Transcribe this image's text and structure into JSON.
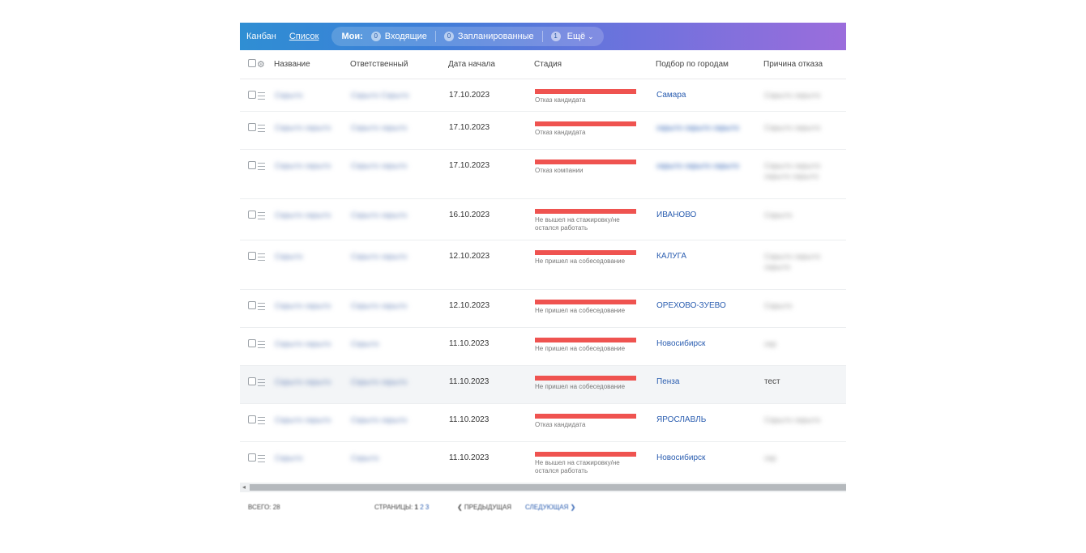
{
  "toolbar": {
    "tab_kanban": "Канбан",
    "tab_list": "Список",
    "my_label": "Мои:",
    "incoming_count": "0",
    "incoming": "Входящие",
    "planned_count": "0",
    "planned": "Запланированные",
    "more_count": "1",
    "more": "Ещё"
  },
  "columns": {
    "name": "Название",
    "responsible": "Ответственный",
    "start_date": "Дата начала",
    "stage": "Стадия",
    "city": "Подбор по городам",
    "reason": "Причина отказа"
  },
  "rows": [
    {
      "name": "Скрыто",
      "responsible": "Скрыто Скрыто",
      "date": "17.10.2023",
      "stage": "Отказ кандидата",
      "city": "Самара",
      "reason": "Скрыто скрыто"
    },
    {
      "name": "Скрыто скрыто",
      "responsible": "Скрыто скрыто",
      "date": "17.10.2023",
      "stage": "Отказ кандидата",
      "city": "скрыто скрыто скрыто",
      "reason": "Скрыто скрыто"
    },
    {
      "name": "Скрыто скрыто",
      "responsible": "Скрыто скрыто",
      "date": "17.10.2023",
      "stage": "Отказ компании",
      "city": "скрыто скрыто скрыто",
      "reason": "Скрыто скрыто скрыто скрыто"
    },
    {
      "name": "Скрыто скрыто",
      "responsible": "Скрыто скрыто",
      "date": "16.10.2023",
      "stage": "Не вышел на стажировку/не остался работать",
      "city": "ИВАНОВО",
      "reason": "Скрыто"
    },
    {
      "name": "Скрыто",
      "responsible": "Скрыто скрыто",
      "date": "12.10.2023",
      "stage": "Не пришел на собеседование",
      "city": "КАЛУГА",
      "reason": "Скрыто скрыто скрыто"
    },
    {
      "name": "Скрыто скрыто",
      "responsible": "Скрыто скрыто",
      "date": "12.10.2023",
      "stage": "Не пришел на собеседование",
      "city": "ОРЕХОВО-ЗУЕВО",
      "reason": "Скрыто"
    },
    {
      "name": "Скрыто скрыто",
      "responsible": "Скрыто",
      "date": "11.10.2023",
      "stage": "Не пришел на собеседование",
      "city": "Новосибирск",
      "reason": "скр"
    },
    {
      "name": "Скрыто скрыто",
      "responsible": "Скрыто скрыто",
      "date": "11.10.2023",
      "stage": "Не пришел на собеседование",
      "city": "Пенза",
      "reason": "тест"
    },
    {
      "name": "Скрыто скрыто",
      "responsible": "Скрыто скрыто",
      "date": "11.10.2023",
      "stage": "Отказ кандидата",
      "city": "ЯРОСЛАВЛЬ",
      "reason": "Скрыто скрыто"
    },
    {
      "name": "Скрыто",
      "responsible": "Скрыто",
      "date": "11.10.2023",
      "stage": "Не вышел на стажировку/не остался работать",
      "city": "Новосибирск",
      "reason": "скр"
    }
  ],
  "footer": {
    "total": "ВСЕГО: 28",
    "pages_label": "СТРАНИЦЫ:",
    "page_1": "1",
    "page_2": "2",
    "page_3": "3",
    "prev": "❮ ПРЕДЫДУЩАЯ",
    "next": "СЛЕДУЮЩАЯ ❯"
  },
  "colors": {
    "stage_bar": "#ef5350",
    "link": "#2a5db0"
  }
}
